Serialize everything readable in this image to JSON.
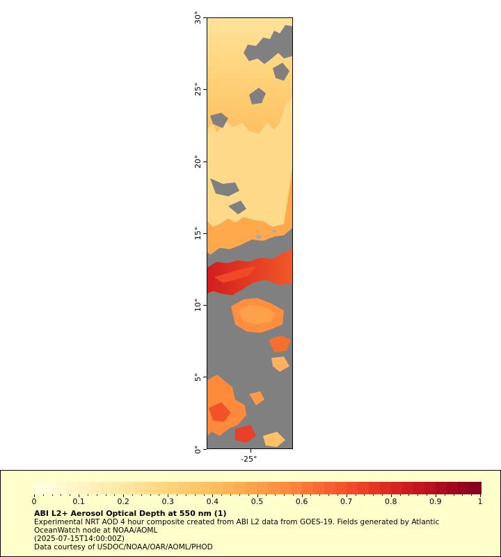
{
  "map": {
    "lat_ticks": [
      "0°",
      "5°",
      "10°",
      "15°",
      "20°",
      "25°",
      "30°"
    ],
    "lon_ticks": [
      "-25°"
    ],
    "no_data_color": "#808080",
    "land_color": "#a8a8a8"
  },
  "legend": {
    "colorbar_ticks": [
      "0",
      "0.1",
      "0.2",
      "0.3",
      "0.4",
      "0.5",
      "0.6",
      "0.7",
      "0.8",
      "0.9",
      "1"
    ],
    "palette": [
      "#ffffe0",
      "#fff3c4",
      "#ffe6a0",
      "#ffd37a",
      "#ffbe5e",
      "#ffa04a",
      "#ff7d3a",
      "#f4522c",
      "#dc2a20",
      "#b8101e",
      "#88001f"
    ],
    "title": "ABI L2+ Aerosol Optical Depth at 550 nm (1)",
    "line1": "Experimental NRT AOD 4 hour composite created from ABI L2 data from GOES-19. Fields generated by Atlantic",
    "line2": "OceanWatch node at NOAA/AOML",
    "line3": "(2025-07-15T14:00:00Z)",
    "line4": "Data courtesy of USDOC/NOAA/OAR/AOML/PHOD"
  }
}
